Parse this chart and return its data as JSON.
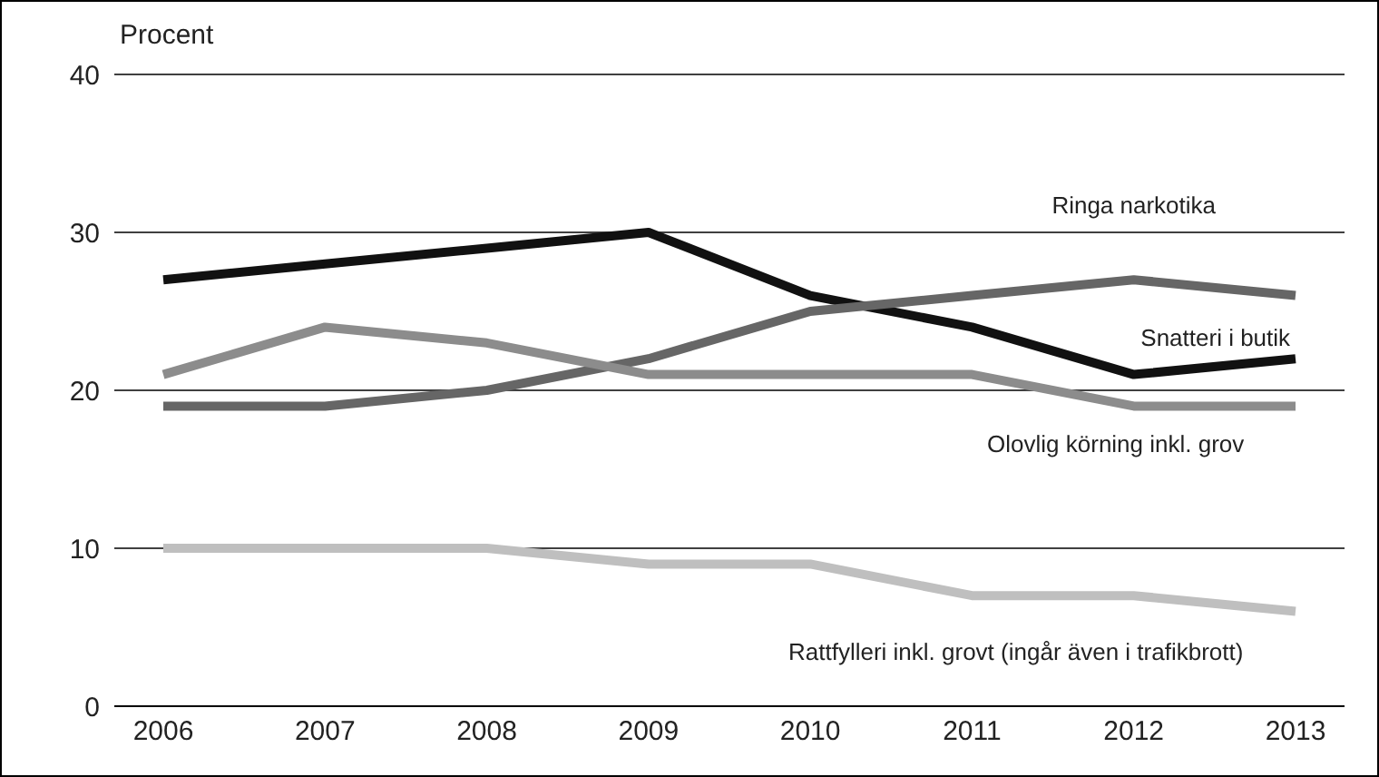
{
  "chart_data": {
    "type": "line",
    "ylabel": "Procent",
    "categories": [
      "2006",
      "2007",
      "2008",
      "2009",
      "2010",
      "2011",
      "2012",
      "2013"
    ],
    "series": [
      {
        "name": "Snatteri i butik",
        "color": "#111111",
        "values": [
          27,
          28,
          29,
          30,
          26,
          24,
          21,
          22
        ]
      },
      {
        "name": "Ringa narkotika",
        "color": "#666666",
        "values": [
          19,
          19,
          20,
          22,
          25,
          26,
          27,
          26
        ]
      },
      {
        "name": "Olovlig körning inkl. grov",
        "color": "#8c8c8c",
        "values": [
          21,
          24,
          23,
          21,
          21,
          21,
          19,
          19
        ]
      },
      {
        "name": "Rattfylleri inkl. grovt (ingår även i trafikbrott)",
        "color": "#bfbfbf",
        "values": [
          10,
          10,
          10,
          9,
          9,
          7,
          7,
          6
        ]
      }
    ],
    "ylim": [
      0,
      40
    ],
    "yticks": [
      0,
      10,
      20,
      30,
      40
    ],
    "grid": "y",
    "marker": "none",
    "line_style": "solid"
  }
}
